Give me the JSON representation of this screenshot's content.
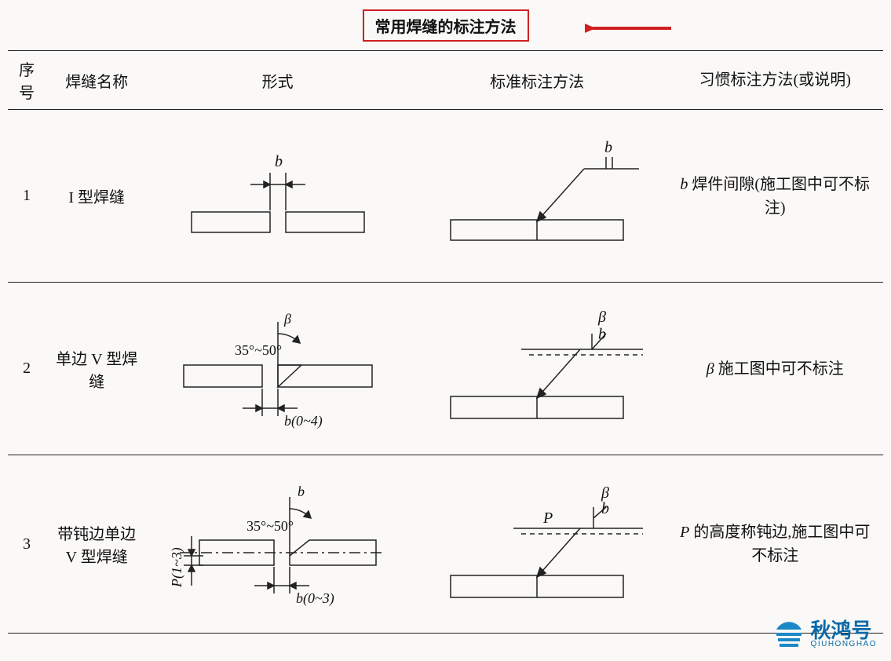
{
  "title": "常用焊缝的标注方法",
  "headers": {
    "num": "序号",
    "name": "焊缝名称",
    "form": "形式",
    "std": "标准标注方法",
    "note": "习惯标注方法(或说明)"
  },
  "rows": [
    {
      "num": "1",
      "name": "I 型焊缝",
      "note_html": "<span class='italic'>b</span> 焊件间隙(施工图中可不标注)",
      "form": {
        "label_b": "b"
      },
      "std": {
        "label_b": "b"
      }
    },
    {
      "num": "2",
      "name": "单边 V 型焊缝",
      "note_html": "<span class='italic'>β</span> 施工图中可不标注",
      "form": {
        "beta": "β",
        "angle": "35°~50°",
        "gap": "b(0~4)"
      },
      "std": {
        "beta": "β",
        "b": "b"
      }
    },
    {
      "num": "3",
      "name": "带钝边单边 V 型焊缝",
      "note_html": "<span class='italic'>P</span> 的高度称钝边,施工图中可不标注",
      "form": {
        "b": "b",
        "angle": "35°~50°",
        "gap": "b(0~3)",
        "P": "P(1~3)"
      },
      "std": {
        "beta": "β",
        "b": "b",
        "P": "P"
      }
    }
  ],
  "watermark": {
    "cn": "秋鸿号",
    "en": "QIUHONGHAO"
  },
  "colors": {
    "stroke": "#222222",
    "red": "#d02020",
    "brand": "#1b88c7",
    "bg": "#faf9f7"
  }
}
